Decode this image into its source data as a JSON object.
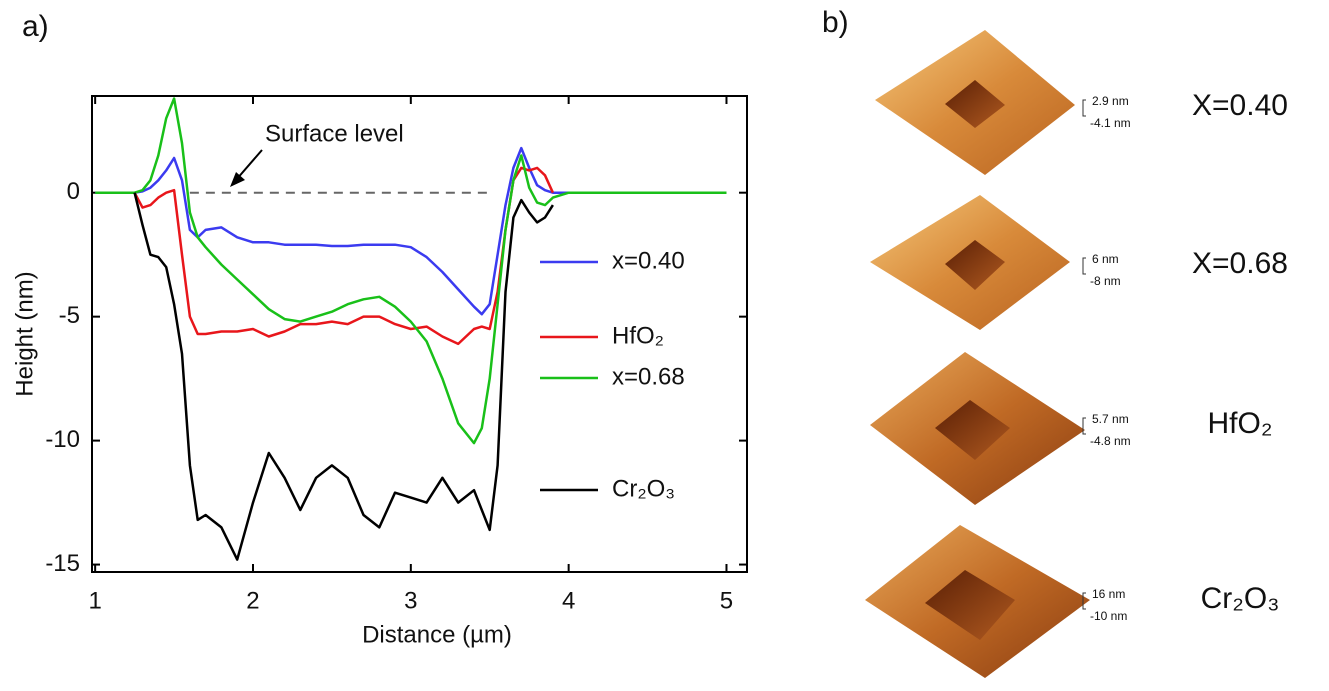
{
  "chart_data": {
    "type": "line",
    "panel_label": "a)",
    "x_label": "Distance (µm)",
    "y_label": "Height (nm)",
    "xlim": [
      0.98,
      5.13
    ],
    "ylim": [
      -15.3,
      3.9
    ],
    "xticks": [
      1,
      2,
      3,
      4,
      5
    ],
    "yticks": [
      0,
      -5,
      -10,
      -15
    ],
    "annotation": "Surface level",
    "hline": {
      "value": 0,
      "from": 1.6,
      "to": 3.5,
      "color": "#666666"
    },
    "legend": "right",
    "x": [
      1.0,
      1.2,
      1.25,
      1.3,
      1.35,
      1.4,
      1.45,
      1.5,
      1.55,
      1.6,
      1.65,
      1.7,
      1.8,
      1.9,
      2.0,
      2.1,
      2.2,
      2.3,
      2.4,
      2.5,
      2.6,
      2.7,
      2.8,
      2.9,
      3.0,
      3.1,
      3.2,
      3.3,
      3.4,
      3.45,
      3.5,
      3.55,
      3.6,
      3.65,
      3.7,
      3.75,
      3.8,
      3.85,
      3.9,
      4.0,
      4.5,
      5.0
    ],
    "series": [
      {
        "name": "x=0.40",
        "color": "#3b3bf0",
        "values": [
          0,
          0,
          0,
          0.05,
          0.2,
          0.5,
          0.9,
          1.4,
          0.5,
          -1.5,
          -1.8,
          -1.5,
          -1.4,
          -1.8,
          -2.0,
          -2.0,
          -2.1,
          -2.1,
          -2.1,
          -2.15,
          -2.15,
          -2.1,
          -2.1,
          -2.1,
          -2.2,
          -2.6,
          -3.2,
          -3.9,
          -4.6,
          -4.9,
          -4.5,
          -2.5,
          -0.5,
          1.0,
          1.8,
          1.0,
          0.3,
          0.1,
          0,
          0,
          0,
          0
        ]
      },
      {
        "name": "HfO₂",
        "color": "#e8161b",
        "values": [
          null,
          null,
          0,
          -0.6,
          -0.5,
          -0.2,
          0,
          0.1,
          -2.5,
          -5.0,
          -5.7,
          -5.7,
          -5.6,
          -5.6,
          -5.5,
          -5.8,
          -5.6,
          -5.3,
          -5.3,
          -5.2,
          -5.3,
          -5.0,
          -5.0,
          -5.3,
          -5.5,
          -5.4,
          -5.8,
          -6.1,
          -5.5,
          -5.4,
          -5.5,
          -4.0,
          -1.5,
          0.5,
          1.0,
          0.9,
          1.0,
          0.7,
          0,
          null,
          null,
          null
        ]
      },
      {
        "name": "x=0.68",
        "color": "#19c019",
        "values": [
          0,
          0,
          0,
          0.1,
          0.5,
          1.5,
          3.0,
          3.8,
          2.0,
          -0.8,
          -1.8,
          -2.2,
          -2.9,
          -3.5,
          -4.1,
          -4.7,
          -5.1,
          -5.2,
          -5.0,
          -4.8,
          -4.5,
          -4.3,
          -4.2,
          -4.6,
          -5.2,
          -6.0,
          -7.5,
          -9.3,
          -10.1,
          -9.5,
          -7.5,
          -4.5,
          -1.5,
          0.5,
          1.5,
          0.2,
          -0.4,
          -0.5,
          -0.2,
          0,
          0,
          0
        ]
      },
      {
        "name": "Cr₂O₃",
        "color": "#000000",
        "values": [
          null,
          null,
          0,
          -1.3,
          -2.5,
          -2.6,
          -3.0,
          -4.5,
          -6.5,
          -11.0,
          -13.2,
          -13.0,
          -13.5,
          -14.8,
          -12.5,
          -10.5,
          -11.5,
          -12.8,
          -11.5,
          -11.0,
          -11.5,
          -13.0,
          -13.5,
          -12.1,
          -12.3,
          -12.5,
          -11.5,
          -12.5,
          -12.0,
          -12.8,
          -13.6,
          -11.0,
          -4.0,
          -1.0,
          -0.3,
          -0.8,
          -1.2,
          -1.0,
          -0.5,
          null,
          null,
          null
        ]
      }
    ]
  },
  "panel_b": {
    "label": "b)",
    "images": [
      {
        "label": "X=0.40",
        "max": "2.9 nm",
        "min": "-4.1 nm"
      },
      {
        "label": "X=0.68",
        "max": "6 nm",
        "min": "-8 nm"
      },
      {
        "label": "HfO₂",
        "max": "5.7 nm",
        "min": "-4.8 nm"
      },
      {
        "label": "Cr₂O₃",
        "max": "16 nm",
        "min": "-10 nm"
      }
    ]
  }
}
